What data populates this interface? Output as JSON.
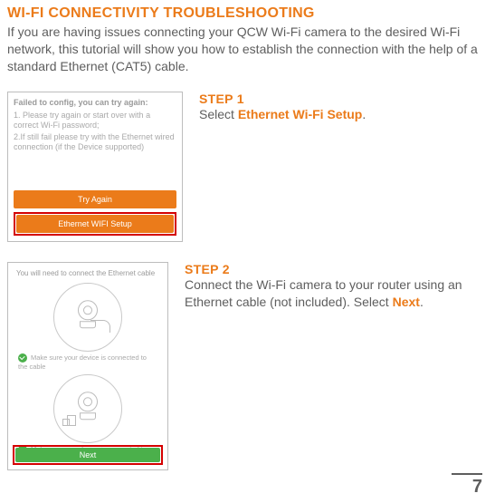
{
  "colors": {
    "accent": "#eb7b1a",
    "highlight_border": "#d40000",
    "success": "#4bb04b",
    "text": "#5e5e5e",
    "muted": "#a9a9a9",
    "border": "#bdbdbd"
  },
  "typography": {
    "title_fontsize": 16,
    "body_fontsize": 14,
    "screenshot_fontsize": 9
  },
  "title": "WI-FI CONNECTIVITY TROUBLESHOOTING",
  "intro": "If you are having issues connecting your QCW Wi-Fi camera to the desired Wi-Fi network, this tutorial will show you how to establish the connection with the help of a standard Ethernet (CAT5) cable.",
  "step1": {
    "heading": "STEP 1",
    "body_prefix": "Select ",
    "body_accent": "Ethernet Wi-Fi Setup",
    "body_suffix": ".",
    "screenshot": {
      "header": "Failed to config, you can try again:",
      "line1": "1. Please try again or start over with a correct Wi-Fi password;",
      "line2": "2.If still fail please try with the Ethernet wired connection (if the Device supported)",
      "btn_try": "Try Again",
      "btn_eth": "Ethernet WIFI Setup"
    }
  },
  "step2": {
    "heading": "STEP 2",
    "body_prefix": "Connect the Wi-Fi camera to your router using an Ethernet cable (not included). Select ",
    "body_accent": "Next",
    "body_suffix": ".",
    "screenshot": {
      "header": "You will need to connect the Ethernet cable",
      "note1": "Make sure your device is connected to the cable",
      "note2": "Make sure your device is connected to",
      "btn_next": "Next"
    }
  },
  "page_number": "7"
}
